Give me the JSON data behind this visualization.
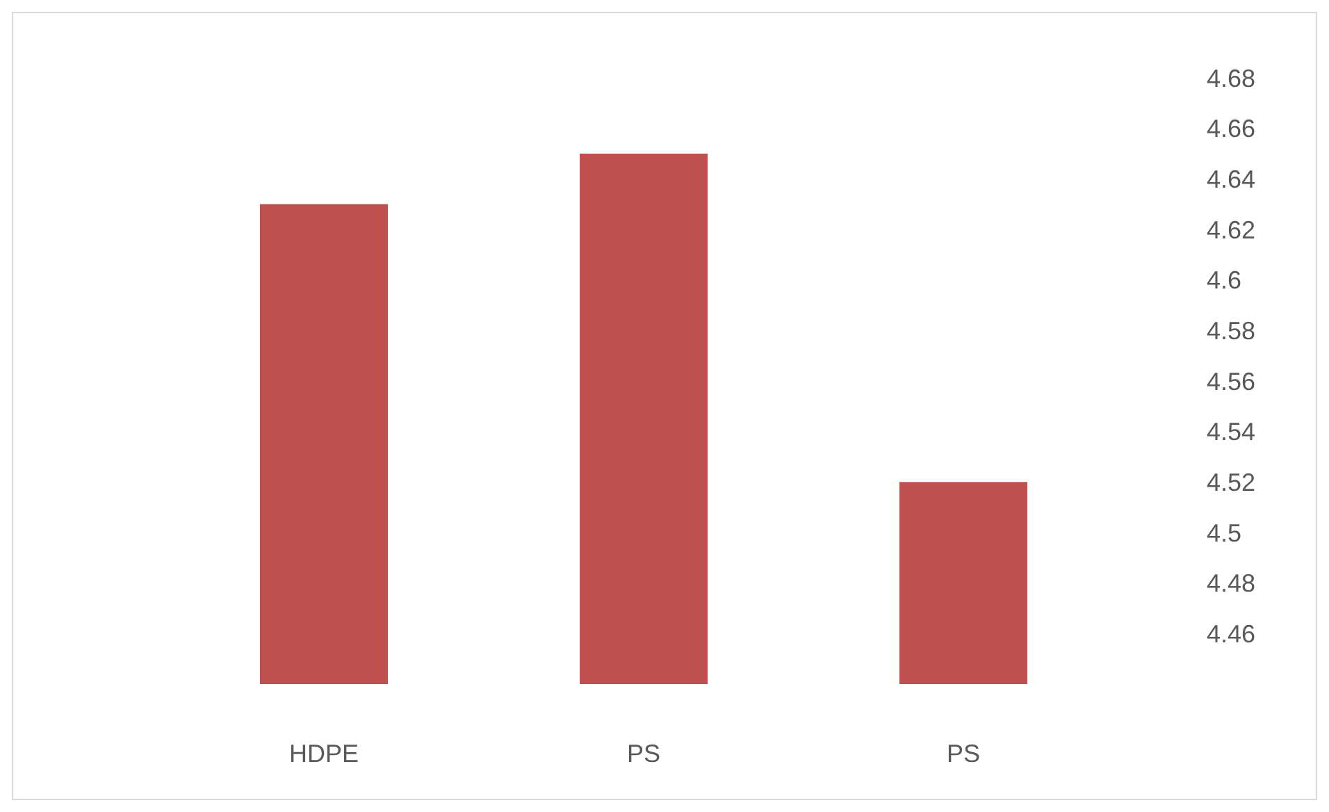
{
  "chart_data": {
    "type": "bar",
    "categories": [
      "HDPE",
      "PS",
      "PS"
    ],
    "values": [
      4.63,
      4.65,
      4.52
    ],
    "color": "#c0504d",
    "ylim": [
      4.44,
      4.68
    ],
    "yticks": [
      4.46,
      4.48,
      4.5,
      4.52,
      4.54,
      4.56,
      4.58,
      4.6,
      4.62,
      4.64,
      4.66,
      4.68
    ],
    "grid": false
  }
}
